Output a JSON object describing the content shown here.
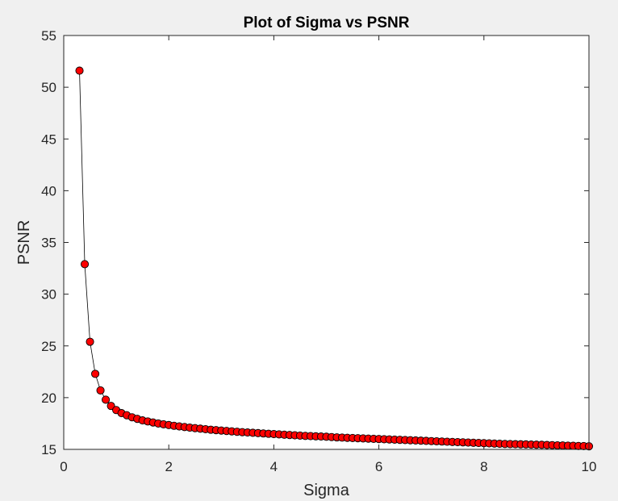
{
  "colors": {
    "figure_background": "#f0f0f0",
    "plot_background": "#ffffff",
    "axis": "#262626",
    "line": "#000000",
    "marker_fill": "#ff0000",
    "marker_edge": "#000000"
  },
  "chart_data": {
    "type": "line",
    "title": "Plot of Sigma vs PSNR",
    "xlabel": "Sigma",
    "ylabel": "PSNR",
    "xlim": [
      0,
      10
    ],
    "ylim": [
      15,
      55
    ],
    "xticks": [
      0,
      2,
      4,
      6,
      8,
      10
    ],
    "yticks": [
      15,
      20,
      25,
      30,
      35,
      40,
      45,
      50,
      55
    ],
    "grid": false,
    "legend": "none",
    "marker": "circle",
    "series": [
      {
        "x": [
          0.3,
          0.4,
          0.5,
          0.6,
          0.7,
          0.8,
          0.9,
          1.0,
          1.1,
          1.2,
          1.3,
          1.4,
          1.5,
          1.6,
          1.7,
          1.8,
          1.9,
          2.0,
          2.1,
          2.2,
          2.3,
          2.4,
          2.5,
          2.6,
          2.7,
          2.8,
          2.9,
          3.0,
          3.1,
          3.2,
          3.3,
          3.4,
          3.5,
          3.6,
          3.7,
          3.8,
          3.9,
          4.0,
          4.1,
          4.2,
          4.3,
          4.4,
          4.5,
          4.6,
          4.7,
          4.8,
          4.9,
          5.0,
          5.1,
          5.2,
          5.3,
          5.4,
          5.5,
          5.6,
          5.7,
          5.8,
          5.9,
          6.0,
          6.1,
          6.2,
          6.3,
          6.4,
          6.5,
          6.6,
          6.7,
          6.8,
          6.9,
          7.0,
          7.1,
          7.2,
          7.3,
          7.4,
          7.5,
          7.6,
          7.7,
          7.8,
          7.9,
          8.0,
          8.1,
          8.2,
          8.3,
          8.4,
          8.5,
          8.6,
          8.7,
          8.8,
          8.9,
          9.0,
          9.1,
          9.2,
          9.3,
          9.4,
          9.5,
          9.6,
          9.7,
          9.8,
          9.9,
          10.0
        ],
        "y": [
          51.6,
          32.9,
          25.4,
          22.3,
          20.7,
          19.8,
          19.2,
          18.8,
          18.5,
          18.3,
          18.1,
          17.95,
          17.8,
          17.7,
          17.6,
          17.5,
          17.42,
          17.35,
          17.28,
          17.22,
          17.16,
          17.1,
          17.05,
          17.0,
          16.95,
          16.9,
          16.86,
          16.82,
          16.78,
          16.74,
          16.7,
          16.66,
          16.63,
          16.6,
          16.57,
          16.54,
          16.51,
          16.48,
          16.45,
          16.42,
          16.39,
          16.36,
          16.33,
          16.3,
          16.28,
          16.26,
          16.24,
          16.22,
          16.19,
          16.16,
          16.14,
          16.12,
          16.1,
          16.08,
          16.06,
          16.04,
          16.02,
          16.0,
          15.98,
          15.96,
          15.94,
          15.92,
          15.9,
          15.88,
          15.86,
          15.84,
          15.82,
          15.8,
          15.78,
          15.76,
          15.74,
          15.72,
          15.7,
          15.68,
          15.66,
          15.64,
          15.62,
          15.6,
          15.58,
          15.56,
          15.54,
          15.52,
          15.51,
          15.5,
          15.49,
          15.48,
          15.46,
          15.45,
          15.44,
          15.42,
          15.41,
          15.39,
          15.38,
          15.36,
          15.35,
          15.33,
          15.32,
          15.3
        ]
      }
    ]
  }
}
